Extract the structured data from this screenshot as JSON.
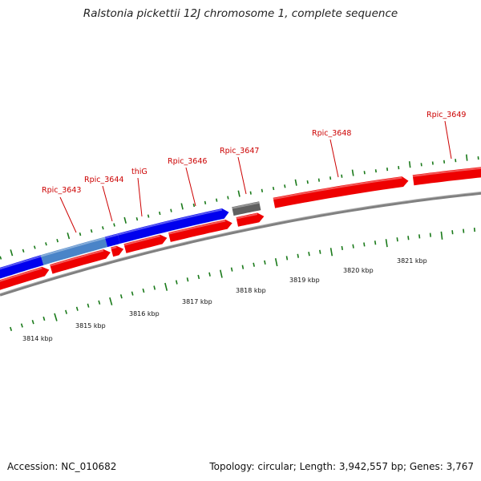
{
  "title": "Ralstonia pickettii 12J chromosome 1, complete sequence",
  "accession_text": "Accession: NC_010682",
  "summary_text": "Topology: circular; Length: 3,942,557 bp; Genes: 3,767",
  "colors": {
    "forward_cds": "#0000ee",
    "forward_cds_light": "#4a84c8",
    "reverse_cds": "#ee0000",
    "other_feature": "#606060",
    "backbone": "#808080",
    "ticks": "#1a7a1a",
    "labels": "#cc0000"
  },
  "gene_labels": [
    "Rpic_3643",
    "Rpic_3644",
    "thiG",
    "Rpic_3646",
    "Rpic_3647",
    "Rpic_3648",
    "Rpic_3649"
  ],
  "scale_labels": [
    "3814 kbp",
    "3815 kbp",
    "3816 kbp",
    "3817 kbp",
    "3818 kbp",
    "3819 kbp",
    "3820 kbp",
    "3821 kbp"
  ]
}
